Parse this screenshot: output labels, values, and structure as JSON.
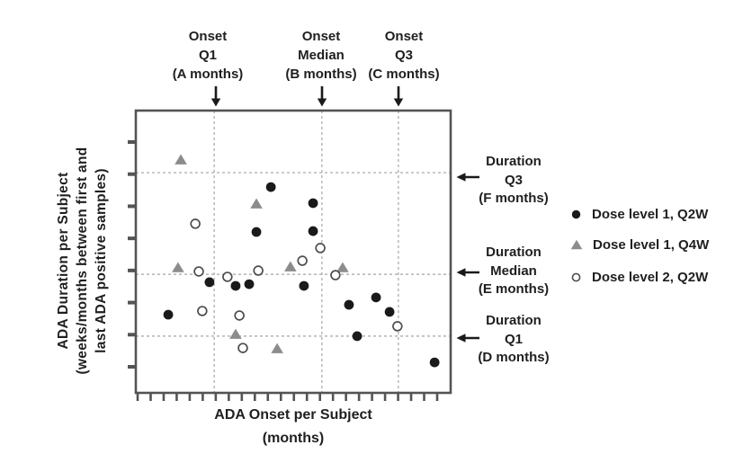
{
  "top_annotations": [
    {
      "id": "onset-q1",
      "text": "Onset\nQ1\n(A months)"
    },
    {
      "id": "onset-median",
      "text": "Onset\nMedian\n(B months)"
    },
    {
      "id": "onset-q3",
      "text": "Onset\nQ3\n(C months)"
    }
  ],
  "right_annotations": [
    {
      "id": "duration-q3",
      "text": "Duration\nQ3\n(F months)"
    },
    {
      "id": "duration-median",
      "text": "Duration\nMedian\n(E months)"
    },
    {
      "id": "duration-q1",
      "text": "Duration\nQ1\n(D months)"
    }
  ],
  "axes": {
    "x_label": "ADA Onset per Subject\n(months)",
    "y_label": "ADA Duration per Subject\n(weeks/months between first and\nlast ADA positive samples)"
  },
  "legend": {
    "items": [
      {
        "marker": "filled-circle",
        "label": "Dose level 1, Q2W"
      },
      {
        "marker": "filled-triangle",
        "label": "Dose level 1, Q4W"
      },
      {
        "marker": "open-circle",
        "label": "Dose level 2, Q2W"
      }
    ]
  },
  "colors": {
    "marker_black": "#1a1a1a",
    "marker_gray": "#8c8c8c",
    "open_circle_stroke": "#4d4d4d",
    "frame": "#545454",
    "gridline": "#b3b3b3",
    "text": "#1f1f1f",
    "background": "#ffffff"
  },
  "chart_data": {
    "type": "scatter",
    "title": "",
    "xlabel": "ADA Onset per Subject (months)",
    "ylabel": "ADA Duration per Subject (weeks/months between first and last ADA positive samples)",
    "axis_values_shown": false,
    "note": "Axes carry only unlabeled minor tick marks; quartile positions are given placeholder letters A-F months. Point coordinates are fractions of the plot box (x: 0=left to 1=right; y: 0=top to 1=bottom).",
    "x_minor_tick_count": 24,
    "y_minor_tick_count": 8,
    "grid": "dashed quartile reference lines only",
    "legend_position": "right of plot",
    "reference_lines": {
      "vertical": [
        {
          "label": "Onset Q1 (A months)",
          "x_frac": 0.249
        },
        {
          "label": "Onset Median (B months)",
          "x_frac": 0.591
        },
        {
          "label": "Onset Q3 (C months)",
          "x_frac": 0.834
        }
      ],
      "horizontal": [
        {
          "label": "Duration Q3 (F months)",
          "y_frac": 0.22
        },
        {
          "label": "Duration Median (E months)",
          "y_frac": 0.58
        },
        {
          "label": "Duration Q1 (D months)",
          "y_frac": 0.799
        }
      ]
    },
    "series": [
      {
        "name": "Dose level 1, Q2W",
        "marker": "filled-circle",
        "color": "#1a1a1a",
        "points": [
          [
            0.429,
            0.271
          ],
          [
            0.563,
            0.328
          ],
          [
            0.383,
            0.43
          ],
          [
            0.563,
            0.427
          ],
          [
            0.234,
            0.608
          ],
          [
            0.317,
            0.621
          ],
          [
            0.36,
            0.615
          ],
          [
            0.534,
            0.621
          ],
          [
            0.103,
            0.723
          ],
          [
            0.677,
            0.688
          ],
          [
            0.763,
            0.662
          ],
          [
            0.806,
            0.713
          ],
          [
            0.703,
            0.799
          ],
          [
            0.949,
            0.892
          ]
        ]
      },
      {
        "name": "Dose level 1, Q4W",
        "marker": "filled-triangle",
        "color": "#8c8c8c",
        "points": [
          [
            0.143,
            0.175
          ],
          [
            0.383,
            0.331
          ],
          [
            0.134,
            0.557
          ],
          [
            0.491,
            0.554
          ],
          [
            0.657,
            0.557
          ],
          [
            0.317,
            0.793
          ],
          [
            0.449,
            0.844
          ]
        ]
      },
      {
        "name": "Dose level 2, Q2W",
        "marker": "open-circle",
        "color": "#4d4d4d",
        "points": [
          [
            0.189,
            0.401
          ],
          [
            0.586,
            0.487
          ],
          [
            0.529,
            0.532
          ],
          [
            0.2,
            0.57
          ],
          [
            0.291,
            0.589
          ],
          [
            0.389,
            0.567
          ],
          [
            0.634,
            0.583
          ],
          [
            0.211,
            0.71
          ],
          [
            0.329,
            0.726
          ],
          [
            0.34,
            0.841
          ],
          [
            0.831,
            0.764
          ]
        ]
      }
    ]
  }
}
